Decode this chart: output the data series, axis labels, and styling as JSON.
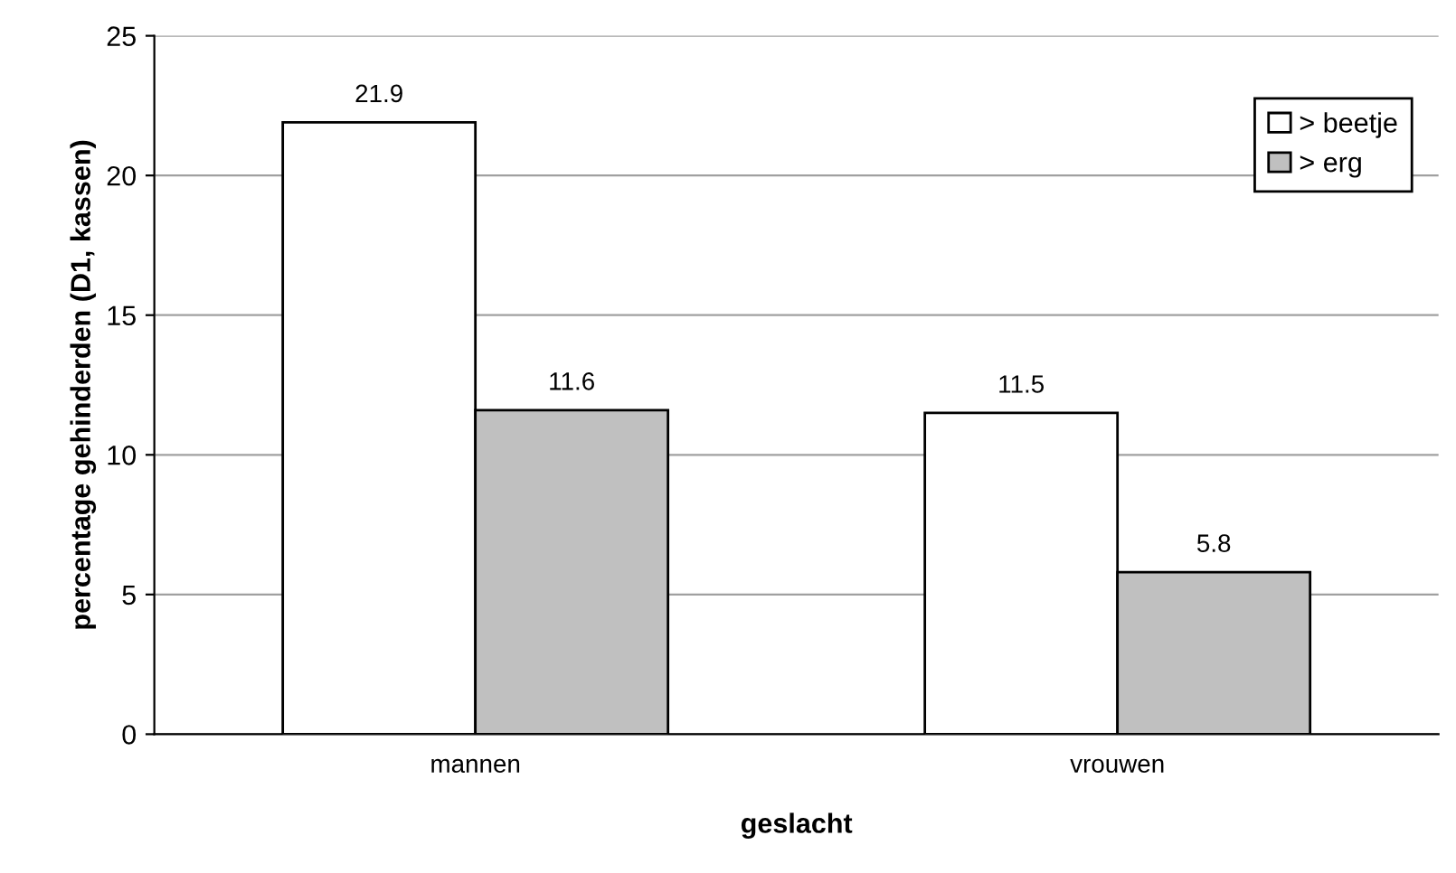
{
  "chart_data": {
    "type": "bar",
    "xlabel": "geslacht",
    "ylabel": "percentage gehinderden (D1, kassen)",
    "categories": [
      "mannen",
      "vrouwen"
    ],
    "series": [
      {
        "name": "> beetje",
        "color": "#ffffff",
        "values": [
          21.9,
          11.5
        ]
      },
      {
        "name": "> erg",
        "color": "#c0c0c0",
        "values": [
          11.6,
          5.8
        ]
      }
    ],
    "ylim": [
      0,
      25
    ],
    "yticks": [
      0,
      5,
      10,
      15,
      20,
      25
    ],
    "grid": "y",
    "legend": "top right",
    "data_labels": true
  }
}
